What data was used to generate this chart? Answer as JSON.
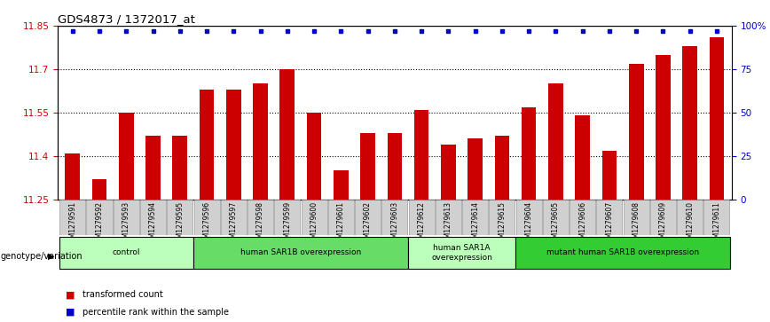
{
  "title": "GDS4873 / 1372017_at",
  "samples": [
    "GSM1279591",
    "GSM1279592",
    "GSM1279593",
    "GSM1279594",
    "GSM1279595",
    "GSM1279596",
    "GSM1279597",
    "GSM1279598",
    "GSM1279599",
    "GSM1279600",
    "GSM1279601",
    "GSM1279602",
    "GSM1279603",
    "GSM1279612",
    "GSM1279613",
    "GSM1279614",
    "GSM1279615",
    "GSM1279604",
    "GSM1279605",
    "GSM1279606",
    "GSM1279607",
    "GSM1279608",
    "GSM1279609",
    "GSM1279610",
    "GSM1279611"
  ],
  "values": [
    11.41,
    11.32,
    11.55,
    11.47,
    11.47,
    11.63,
    11.63,
    11.65,
    11.7,
    11.55,
    11.35,
    11.48,
    11.48,
    11.56,
    11.44,
    11.46,
    11.47,
    11.57,
    11.65,
    11.54,
    11.42,
    11.72,
    11.75,
    11.78,
    11.81
  ],
  "ylim": [
    11.25,
    11.85
  ],
  "yticks": [
    11.25,
    11.4,
    11.55,
    11.7,
    11.85
  ],
  "ytick_labels": [
    "11.25",
    "11.4",
    "11.55",
    "11.7",
    "11.85"
  ],
  "right_yticks": [
    0,
    25,
    50,
    75,
    100
  ],
  "right_ytick_labels": [
    "0",
    "25",
    "50",
    "75",
    "100%"
  ],
  "bar_color": "#cc0000",
  "percentile_color": "#0000cc",
  "groups": [
    {
      "label": "control",
      "start": 0,
      "end": 4,
      "color": "#bbffbb"
    },
    {
      "label": "human SAR1B overexpression",
      "start": 5,
      "end": 12,
      "color": "#66dd66"
    },
    {
      "label": "human SAR1A\noverexpression",
      "start": 13,
      "end": 16,
      "color": "#bbffbb"
    },
    {
      "label": "mutant human SAR1B overexpression",
      "start": 17,
      "end": 24,
      "color": "#33cc33"
    }
  ],
  "group_row_label": "genotype/variation",
  "legend_items": [
    {
      "color": "#cc0000",
      "label": "transformed count"
    },
    {
      "color": "#0000cc",
      "label": "percentile rank within the sample"
    }
  ],
  "grid_color": "#000000",
  "bg_color": "#ffffff",
  "tick_label_color_left": "#cc0000",
  "tick_label_color_right": "#0000cc",
  "xticklabel_bg": "#d0d0d0"
}
